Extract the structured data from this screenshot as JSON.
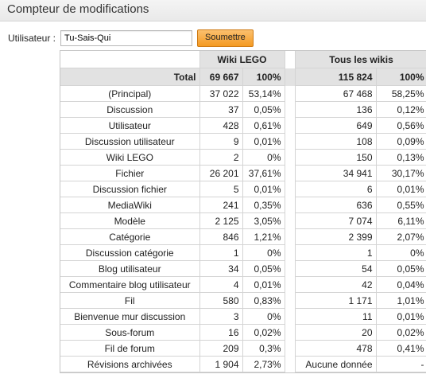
{
  "window": {
    "title": "Compteur de modifications"
  },
  "form": {
    "user_label": "Utilisateur :",
    "user_value": "Tu-Sais-Qui",
    "submit_label": "Soumettre"
  },
  "table": {
    "group1": "Wiki LEGO",
    "group2": "Tous les wikis",
    "total_label": "Total",
    "total1": {
      "count": "69 667",
      "pct": "100%"
    },
    "total2": {
      "count": "115 824",
      "pct": "100%"
    },
    "rows": [
      {
        "name": "(Principal)",
        "c1": "37 022",
        "p1": "53,14%",
        "c2": "67 468",
        "p2": "58,25%"
      },
      {
        "name": "Discussion",
        "c1": "37",
        "p1": "0,05%",
        "c2": "136",
        "p2": "0,12%"
      },
      {
        "name": "Utilisateur",
        "c1": "428",
        "p1": "0,61%",
        "c2": "649",
        "p2": "0,56%"
      },
      {
        "name": "Discussion utilisateur",
        "c1": "9",
        "p1": "0,01%",
        "c2": "108",
        "p2": "0,09%"
      },
      {
        "name": "Wiki LEGO",
        "c1": "2",
        "p1": "0%",
        "c2": "150",
        "p2": "0,13%"
      },
      {
        "name": "Fichier",
        "c1": "26 201",
        "p1": "37,61%",
        "c2": "34 941",
        "p2": "30,17%"
      },
      {
        "name": "Discussion fichier",
        "c1": "5",
        "p1": "0,01%",
        "c2": "6",
        "p2": "0,01%"
      },
      {
        "name": "MediaWiki",
        "c1": "241",
        "p1": "0,35%",
        "c2": "636",
        "p2": "0,55%"
      },
      {
        "name": "Modèle",
        "c1": "2 125",
        "p1": "3,05%",
        "c2": "7 074",
        "p2": "6,11%"
      },
      {
        "name": "Catégorie",
        "c1": "846",
        "p1": "1,21%",
        "c2": "2 399",
        "p2": "2,07%"
      },
      {
        "name": "Discussion catégorie",
        "c1": "1",
        "p1": "0%",
        "c2": "1",
        "p2": "0%"
      },
      {
        "name": "Blog utilisateur",
        "c1": "34",
        "p1": "0,05%",
        "c2": "54",
        "p2": "0,05%"
      },
      {
        "name": "Commentaire blog utilisateur",
        "c1": "4",
        "p1": "0,01%",
        "c2": "42",
        "p2": "0,04%"
      },
      {
        "name": "Fil",
        "c1": "580",
        "p1": "0,83%",
        "c2": "1 171",
        "p2": "1,01%"
      },
      {
        "name": "Bienvenue mur discussion",
        "c1": "3",
        "p1": "0%",
        "c2": "11",
        "p2": "0,01%"
      },
      {
        "name": "Sous-forum",
        "c1": "16",
        "p1": "0,02%",
        "c2": "20",
        "p2": "0,02%"
      },
      {
        "name": "Fil de forum",
        "c1": "209",
        "p1": "0,3%",
        "c2": "478",
        "p2": "0,41%"
      },
      {
        "name": "Révisions archivées",
        "c1": "1 904",
        "p1": "2,73%",
        "c2": "Aucune donnée",
        "p2": "-"
      }
    ]
  }
}
